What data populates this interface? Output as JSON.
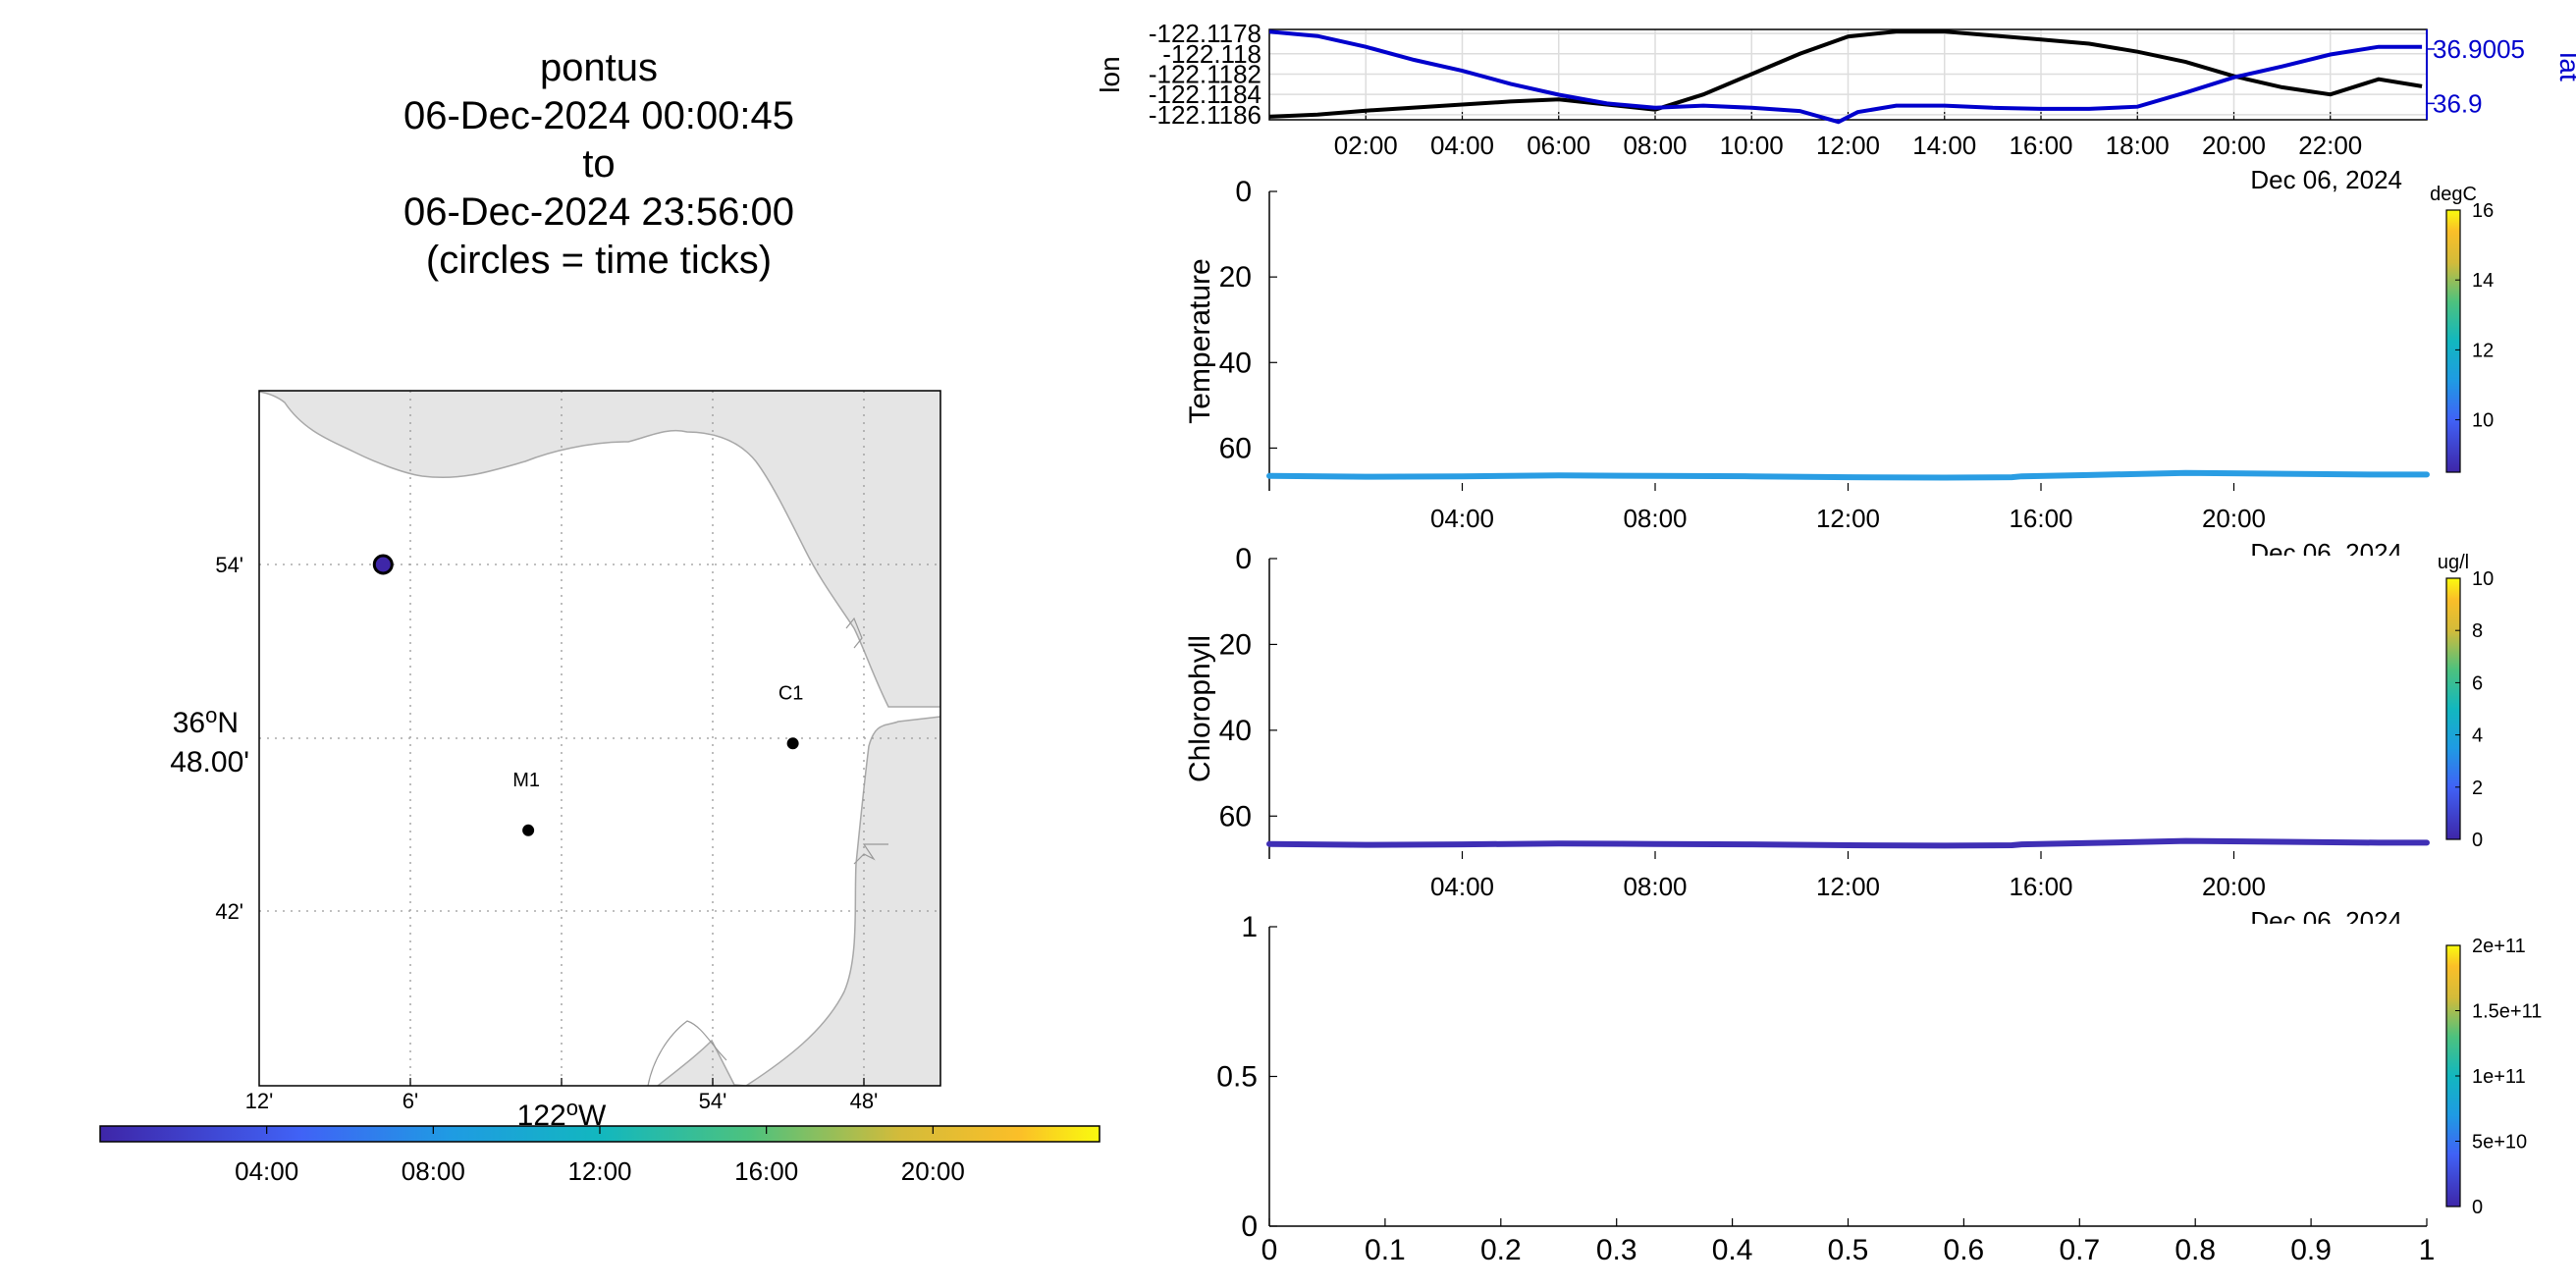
{
  "title": {
    "line1": "pontus",
    "line2": "06-Dec-2024 00:00:45",
    "line3": "to",
    "line4": "06-Dec-2024 23:56:00",
    "line5": "(circles = time ticks)"
  },
  "map": {
    "lat_ticks": [
      "54'",
      "42'"
    ],
    "lat_center_deg": "36",
    "lat_center_hemi": "N",
    "lat_center_min": "48.00'",
    "lon_ticks": [
      "12'",
      "6'",
      "54'",
      "48'"
    ],
    "lon_center_deg": "122",
    "lon_center_hemi": "W",
    "stations": [
      {
        "name": "M1",
        "lat": 36.747,
        "lon": -122.022
      },
      {
        "name": "C1",
        "lat": 36.797,
        "lon": -121.847
      }
    ],
    "vehicle_position": {
      "lat": 36.9,
      "lon": -122.118
    },
    "land_color": "#e5e5e5",
    "colorbar_ticks": [
      "04:00",
      "08:00",
      "12:00",
      "16:00",
      "20:00"
    ]
  },
  "chart_data": [
    {
      "type": "line",
      "name": "position",
      "xlabel": "Dec 06, 2024",
      "x_ticks": [
        "02:00",
        "04:00",
        "06:00",
        "08:00",
        "10:00",
        "12:00",
        "14:00",
        "16:00",
        "18:00",
        "20:00",
        "22:00"
      ],
      "left_axis": {
        "label": "lon",
        "ticks": [
          "-122.1178",
          "-122.118",
          "-122.1182",
          "-122.1184",
          "-122.1186"
        ],
        "ylim": [
          -122.11865,
          -122.11776
        ]
      },
      "right_axis": {
        "label": "lat",
        "ticks": [
          "36.9005",
          "36.9"
        ],
        "ylim": [
          36.89985,
          36.90068
        ],
        "color": "#0000cc"
      },
      "series": [
        {
          "name": "lon",
          "color": "#000000",
          "x": [
            0,
            1,
            2,
            3,
            4,
            5,
            6,
            7,
            8,
            9,
            10,
            11,
            12,
            13,
            14,
            15,
            16,
            17,
            18,
            19,
            20,
            21,
            22,
            23,
            23.9
          ],
          "values": [
            -122.11862,
            -122.1186,
            -122.11856,
            -122.11853,
            -122.1185,
            -122.11847,
            -122.11845,
            -122.1185,
            -122.11855,
            -122.1184,
            -122.1182,
            -122.118,
            -122.11783,
            -122.11778,
            -122.11778,
            -122.11782,
            -122.11786,
            -122.1179,
            -122.11798,
            -122.11808,
            -122.11822,
            -122.11833,
            -122.1184,
            -122.11825,
            -122.11832
          ]
        },
        {
          "name": "lat",
          "color": "#0000cc",
          "x": [
            0,
            1,
            2,
            3,
            4,
            5,
            6,
            7,
            8,
            9,
            10,
            11,
            11.8,
            12.2,
            13,
            14,
            15,
            16,
            17,
            18,
            19,
            20,
            21,
            22,
            23,
            23.9
          ],
          "values": [
            36.90066,
            36.90062,
            36.90052,
            36.9004,
            36.9003,
            36.90018,
            36.90008,
            36.9,
            36.89996,
            36.89998,
            36.89996,
            36.89993,
            36.89983,
            36.89992,
            36.89998,
            36.89998,
            36.89996,
            36.89995,
            36.89995,
            36.89997,
            36.9001,
            36.90024,
            36.90034,
            36.90045,
            36.90052,
            36.90052
          ]
        }
      ]
    },
    {
      "type": "scatter",
      "name": "temperature",
      "ylabel": "Temperature",
      "xlabel": "Dec 06, 2024",
      "x_ticks": [
        "04:00",
        "08:00",
        "12:00",
        "16:00",
        "20:00"
      ],
      "y_ticks": [
        "0",
        "20",
        "40",
        "60"
      ],
      "ylim": [
        0,
        70
      ],
      "y_reversed": true,
      "colorbar": {
        "label": "degC",
        "ticks": [
          "10",
          "12",
          "14",
          "16"
        ],
        "range": [
          8.5,
          16
        ]
      },
      "series": [
        {
          "name": "depth",
          "color": "#2a9de3",
          "x": [
            0,
            2,
            4,
            6,
            8,
            10,
            12,
            14,
            15.4,
            15.6,
            17,
            19,
            21,
            23,
            24
          ],
          "values": [
            66.5,
            66.7,
            66.6,
            66.4,
            66.5,
            66.6,
            66.8,
            66.9,
            66.8,
            66.6,
            66.3,
            65.8,
            66.0,
            66.2,
            66.2
          ]
        }
      ]
    },
    {
      "type": "scatter",
      "name": "chlorophyll",
      "ylabel": "Chlorophyll",
      "xlabel": "Dec 06, 2024",
      "x_ticks": [
        "04:00",
        "08:00",
        "12:00",
        "16:00",
        "20:00"
      ],
      "y_ticks": [
        "0",
        "20",
        "40",
        "60"
      ],
      "ylim": [
        0,
        70
      ],
      "y_reversed": true,
      "colorbar": {
        "label": "ug/l",
        "ticks": [
          "0",
          "2",
          "4",
          "6",
          "8",
          "10"
        ],
        "range": [
          0,
          10
        ]
      },
      "series": [
        {
          "name": "depth",
          "color": "#3f2fb5",
          "x": [
            0,
            2,
            4,
            6,
            8,
            10,
            12,
            14,
            15.4,
            15.6,
            17,
            19,
            21,
            23,
            24
          ],
          "values": [
            66.5,
            66.7,
            66.6,
            66.4,
            66.5,
            66.6,
            66.8,
            66.9,
            66.8,
            66.6,
            66.3,
            65.8,
            66.0,
            66.2,
            66.2
          ]
        }
      ]
    },
    {
      "type": "scatter",
      "name": "empty",
      "x_ticks": [
        "0",
        "0.1",
        "0.2",
        "0.3",
        "0.4",
        "0.5",
        "0.6",
        "0.7",
        "0.8",
        "0.9",
        "1"
      ],
      "y_ticks": [
        "0",
        "0.5",
        "1"
      ],
      "xlim": [
        0,
        1
      ],
      "ylim": [
        0,
        1
      ],
      "colorbar": {
        "ticks": [
          "0",
          "5e+10",
          "1e+11",
          "1.5e+11",
          "2e+11"
        ],
        "range": [
          0,
          200000000000.0
        ]
      },
      "series": []
    }
  ]
}
